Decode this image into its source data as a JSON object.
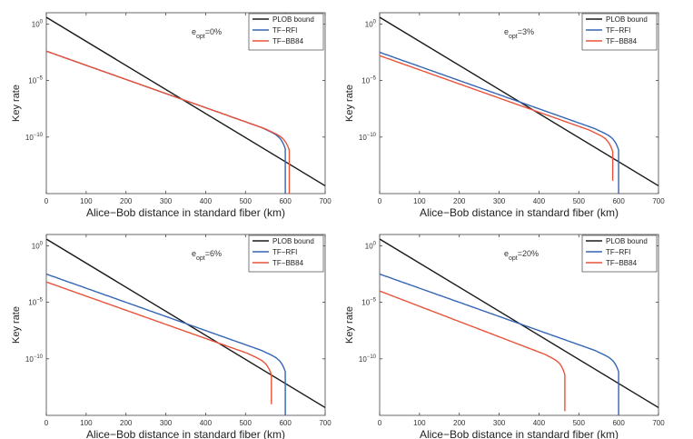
{
  "colors": {
    "PLOB bound": "#1a1a1a",
    "TF−RFI": "#3565b3",
    "TF−BB84": "#e8533a"
  },
  "chart_data": [
    {
      "type": "line",
      "annotation": {
        "base": "e",
        "sub": "opt",
        "value": "=0%"
      },
      "xlabel": "Alice−Bob distance in standard fiber (km)",
      "ylabel": "Key rate",
      "xlim": [
        0,
        700
      ],
      "ylim_log10": [
        -15,
        1
      ],
      "xticks": [
        "0",
        "100",
        "200",
        "300",
        "400",
        "500",
        "600",
        "700"
      ],
      "yticks": [
        {
          "base": "10",
          "exp": "0"
        },
        {
          "base": "10",
          "exp": "−5"
        },
        {
          "base": "10",
          "exp": "−10"
        }
      ],
      "legend": [
        "PLOB bound",
        "TF−RFI",
        "TF−BB84"
      ],
      "series": [
        {
          "name": "PLOB bound",
          "log10_rate_at_0": 0.6,
          "slope_per_km": -0.0213,
          "x_end": 700
        },
        {
          "name": "TF−RFI",
          "log10_rate_at_0": -2.4,
          "slope_per_km": -0.0125,
          "x_cutoff": 600,
          "knee_km": 60
        },
        {
          "name": "TF−BB84",
          "log10_rate_at_0": -2.4,
          "slope_per_km": -0.0125,
          "x_cutoff": 610,
          "knee_km": 60
        }
      ]
    },
    {
      "type": "line",
      "annotation": {
        "base": "e",
        "sub": "opt",
        "value": "=3%"
      },
      "xlabel": "Alice−Bob distance in standard fiber (km)",
      "ylabel": "Key rate",
      "xlim": [
        0,
        700
      ],
      "ylim_log10": [
        -15,
        1
      ],
      "xticks": [
        "0",
        "100",
        "200",
        "300",
        "400",
        "500",
        "600",
        "700"
      ],
      "yticks": [
        {
          "base": "10",
          "exp": "0"
        },
        {
          "base": "10",
          "exp": "−5"
        },
        {
          "base": "10",
          "exp": "−10"
        }
      ],
      "legend": [
        "PLOB bound",
        "TF−RFI",
        "TF−BB84"
      ],
      "series": [
        {
          "name": "PLOB bound",
          "log10_rate_at_0": 0.6,
          "slope_per_km": -0.0213,
          "x_end": 700
        },
        {
          "name": "TF−RFI",
          "log10_rate_at_0": -2.5,
          "slope_per_km": -0.0125,
          "x_cutoff": 600,
          "knee_km": 60
        },
        {
          "name": "TF−BB84",
          "log10_rate_at_0": -2.8,
          "slope_per_km": -0.0125,
          "x_cutoff": 585,
          "knee_km": 60
        }
      ]
    },
    {
      "type": "line",
      "annotation": {
        "base": "e",
        "sub": "opt",
        "value": "=6%"
      },
      "xlabel": "Alice−Bob distance in standard fiber (km)",
      "ylabel": "Key rate",
      "xlim": [
        0,
        700
      ],
      "ylim_log10": [
        -15,
        1
      ],
      "xticks": [
        "0",
        "100",
        "200",
        "300",
        "400",
        "500",
        "600",
        "700"
      ],
      "yticks": [
        {
          "base": "10",
          "exp": "0"
        },
        {
          "base": "10",
          "exp": "−5"
        },
        {
          "base": "10",
          "exp": "−10"
        }
      ],
      "legend": [
        "PLOB bound",
        "TF−RFI",
        "TF−BB84"
      ],
      "series": [
        {
          "name": "PLOB bound",
          "log10_rate_at_0": 0.6,
          "slope_per_km": -0.0213,
          "x_end": 700
        },
        {
          "name": "TF−RFI",
          "log10_rate_at_0": -2.5,
          "slope_per_km": -0.0125,
          "x_cutoff": 600,
          "knee_km": 60
        },
        {
          "name": "TF−BB84",
          "log10_rate_at_0": -3.2,
          "slope_per_km": -0.0125,
          "x_cutoff": 565,
          "knee_km": 60
        }
      ]
    },
    {
      "type": "line",
      "annotation": {
        "base": "e",
        "sub": "opt",
        "value": "=20%"
      },
      "xlabel": "Alice−Bob distance in standard fiber (km)",
      "ylabel": "Key rate",
      "xlim": [
        0,
        700
      ],
      "ylim_log10": [
        -15,
        1
      ],
      "xticks": [
        "0",
        "100",
        "200",
        "300",
        "400",
        "500",
        "600",
        "700"
      ],
      "yticks": [
        {
          "base": "10",
          "exp": "0"
        },
        {
          "base": "10",
          "exp": "−5"
        },
        {
          "base": "10",
          "exp": "−10"
        }
      ],
      "legend": [
        "PLOB bound",
        "TF−RFI",
        "TF−BB84"
      ],
      "series": [
        {
          "name": "PLOB bound",
          "log10_rate_at_0": 0.6,
          "slope_per_km": -0.0213,
          "x_end": 700
        },
        {
          "name": "TF−RFI",
          "log10_rate_at_0": -2.5,
          "slope_per_km": -0.0125,
          "x_cutoff": 600,
          "knee_km": 60
        },
        {
          "name": "TF−BB84",
          "log10_rate_at_0": -4.0,
          "slope_per_km": -0.0135,
          "x_cutoff": 465,
          "knee_km": 50
        }
      ]
    }
  ]
}
